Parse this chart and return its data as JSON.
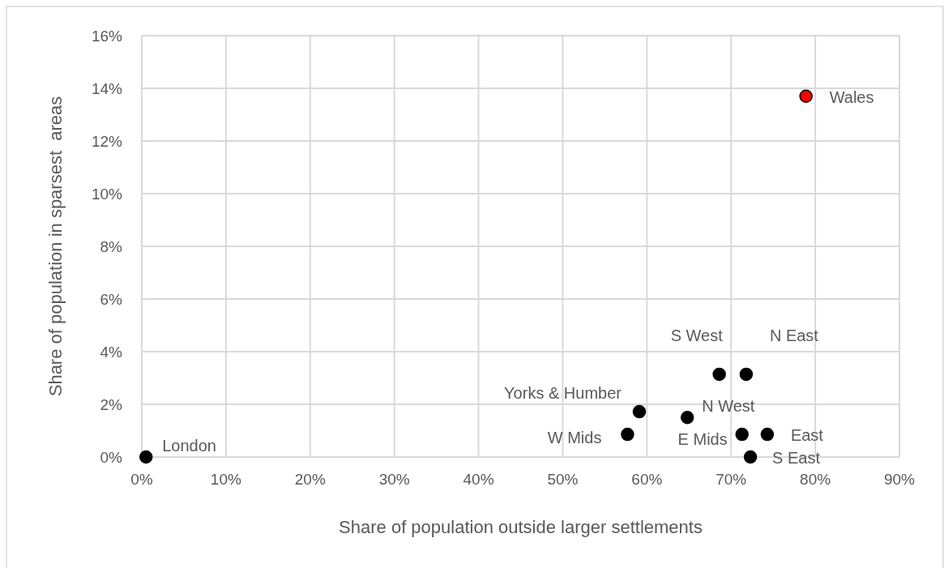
{
  "chart_data": {
    "type": "scatter",
    "xlabel": "Share of population outside larger settlements",
    "ylabel": "Share of population in sparsest  areas",
    "x": [
      0.5,
      57.7,
      59.1,
      64.8,
      68.6,
      71.8,
      71.3,
      74.3,
      72.3,
      78.9
    ],
    "values": [
      0,
      0.86,
      1.72,
      1.5,
      3.14,
      3.14,
      0.86,
      0.86,
      0,
      13.7
    ],
    "colors": [
      "#000000",
      "#000000",
      "#000000",
      "#000000",
      "#000000",
      "#000000",
      "#000000",
      "#000000",
      "#000000",
      "#ff0000"
    ],
    "marker": "circle",
    "grid": true,
    "xlim": [
      0,
      90
    ],
    "ylim": [
      0,
      16
    ],
    "xticks": [
      {
        "value": 0,
        "label": "0%"
      },
      {
        "value": 10,
        "label": "10%"
      },
      {
        "value": 20,
        "label": "20%"
      },
      {
        "value": 30,
        "label": "30%"
      },
      {
        "value": 40,
        "label": "40%"
      },
      {
        "value": 50,
        "label": "50%"
      },
      {
        "value": 60,
        "label": "60%"
      },
      {
        "value": 70,
        "label": "70%"
      },
      {
        "value": 80,
        "label": "80%"
      },
      {
        "value": 90,
        "label": "90%"
      }
    ],
    "yticks": [
      {
        "value": 0,
        "label": "0%"
      },
      {
        "value": 2,
        "label": "2%"
      },
      {
        "value": 4,
        "label": "4%"
      },
      {
        "value": 6,
        "label": "6%"
      },
      {
        "value": 8,
        "label": "8%"
      },
      {
        "value": 10,
        "label": "10%"
      },
      {
        "value": 12,
        "label": "12%"
      },
      {
        "value": 14,
        "label": "14%"
      },
      {
        "value": 16,
        "label": "16%"
      }
    ],
    "annotations": [
      {
        "text": "London",
        "x": 0.5,
        "y": 0
      },
      {
        "text": "W Mids",
        "x": 57.7,
        "y": 0.86
      },
      {
        "text": "Yorks & Humber",
        "x": 59.1,
        "y": 1.72
      },
      {
        "text": "N West",
        "x": 64.8,
        "y": 1.5
      },
      {
        "text": "S West",
        "x": 68.6,
        "y": 3.14
      },
      {
        "text": "N East",
        "x": 71.8,
        "y": 3.14
      },
      {
        "text": "E Mids",
        "x": 71.3,
        "y": 0.86
      },
      {
        "text": "East",
        "x": 74.3,
        "y": 0.86
      },
      {
        "text": "S East",
        "x": 72.3,
        "y": 0
      },
      {
        "text": "Wales",
        "x": 78.9,
        "y": 13.7
      }
    ]
  }
}
